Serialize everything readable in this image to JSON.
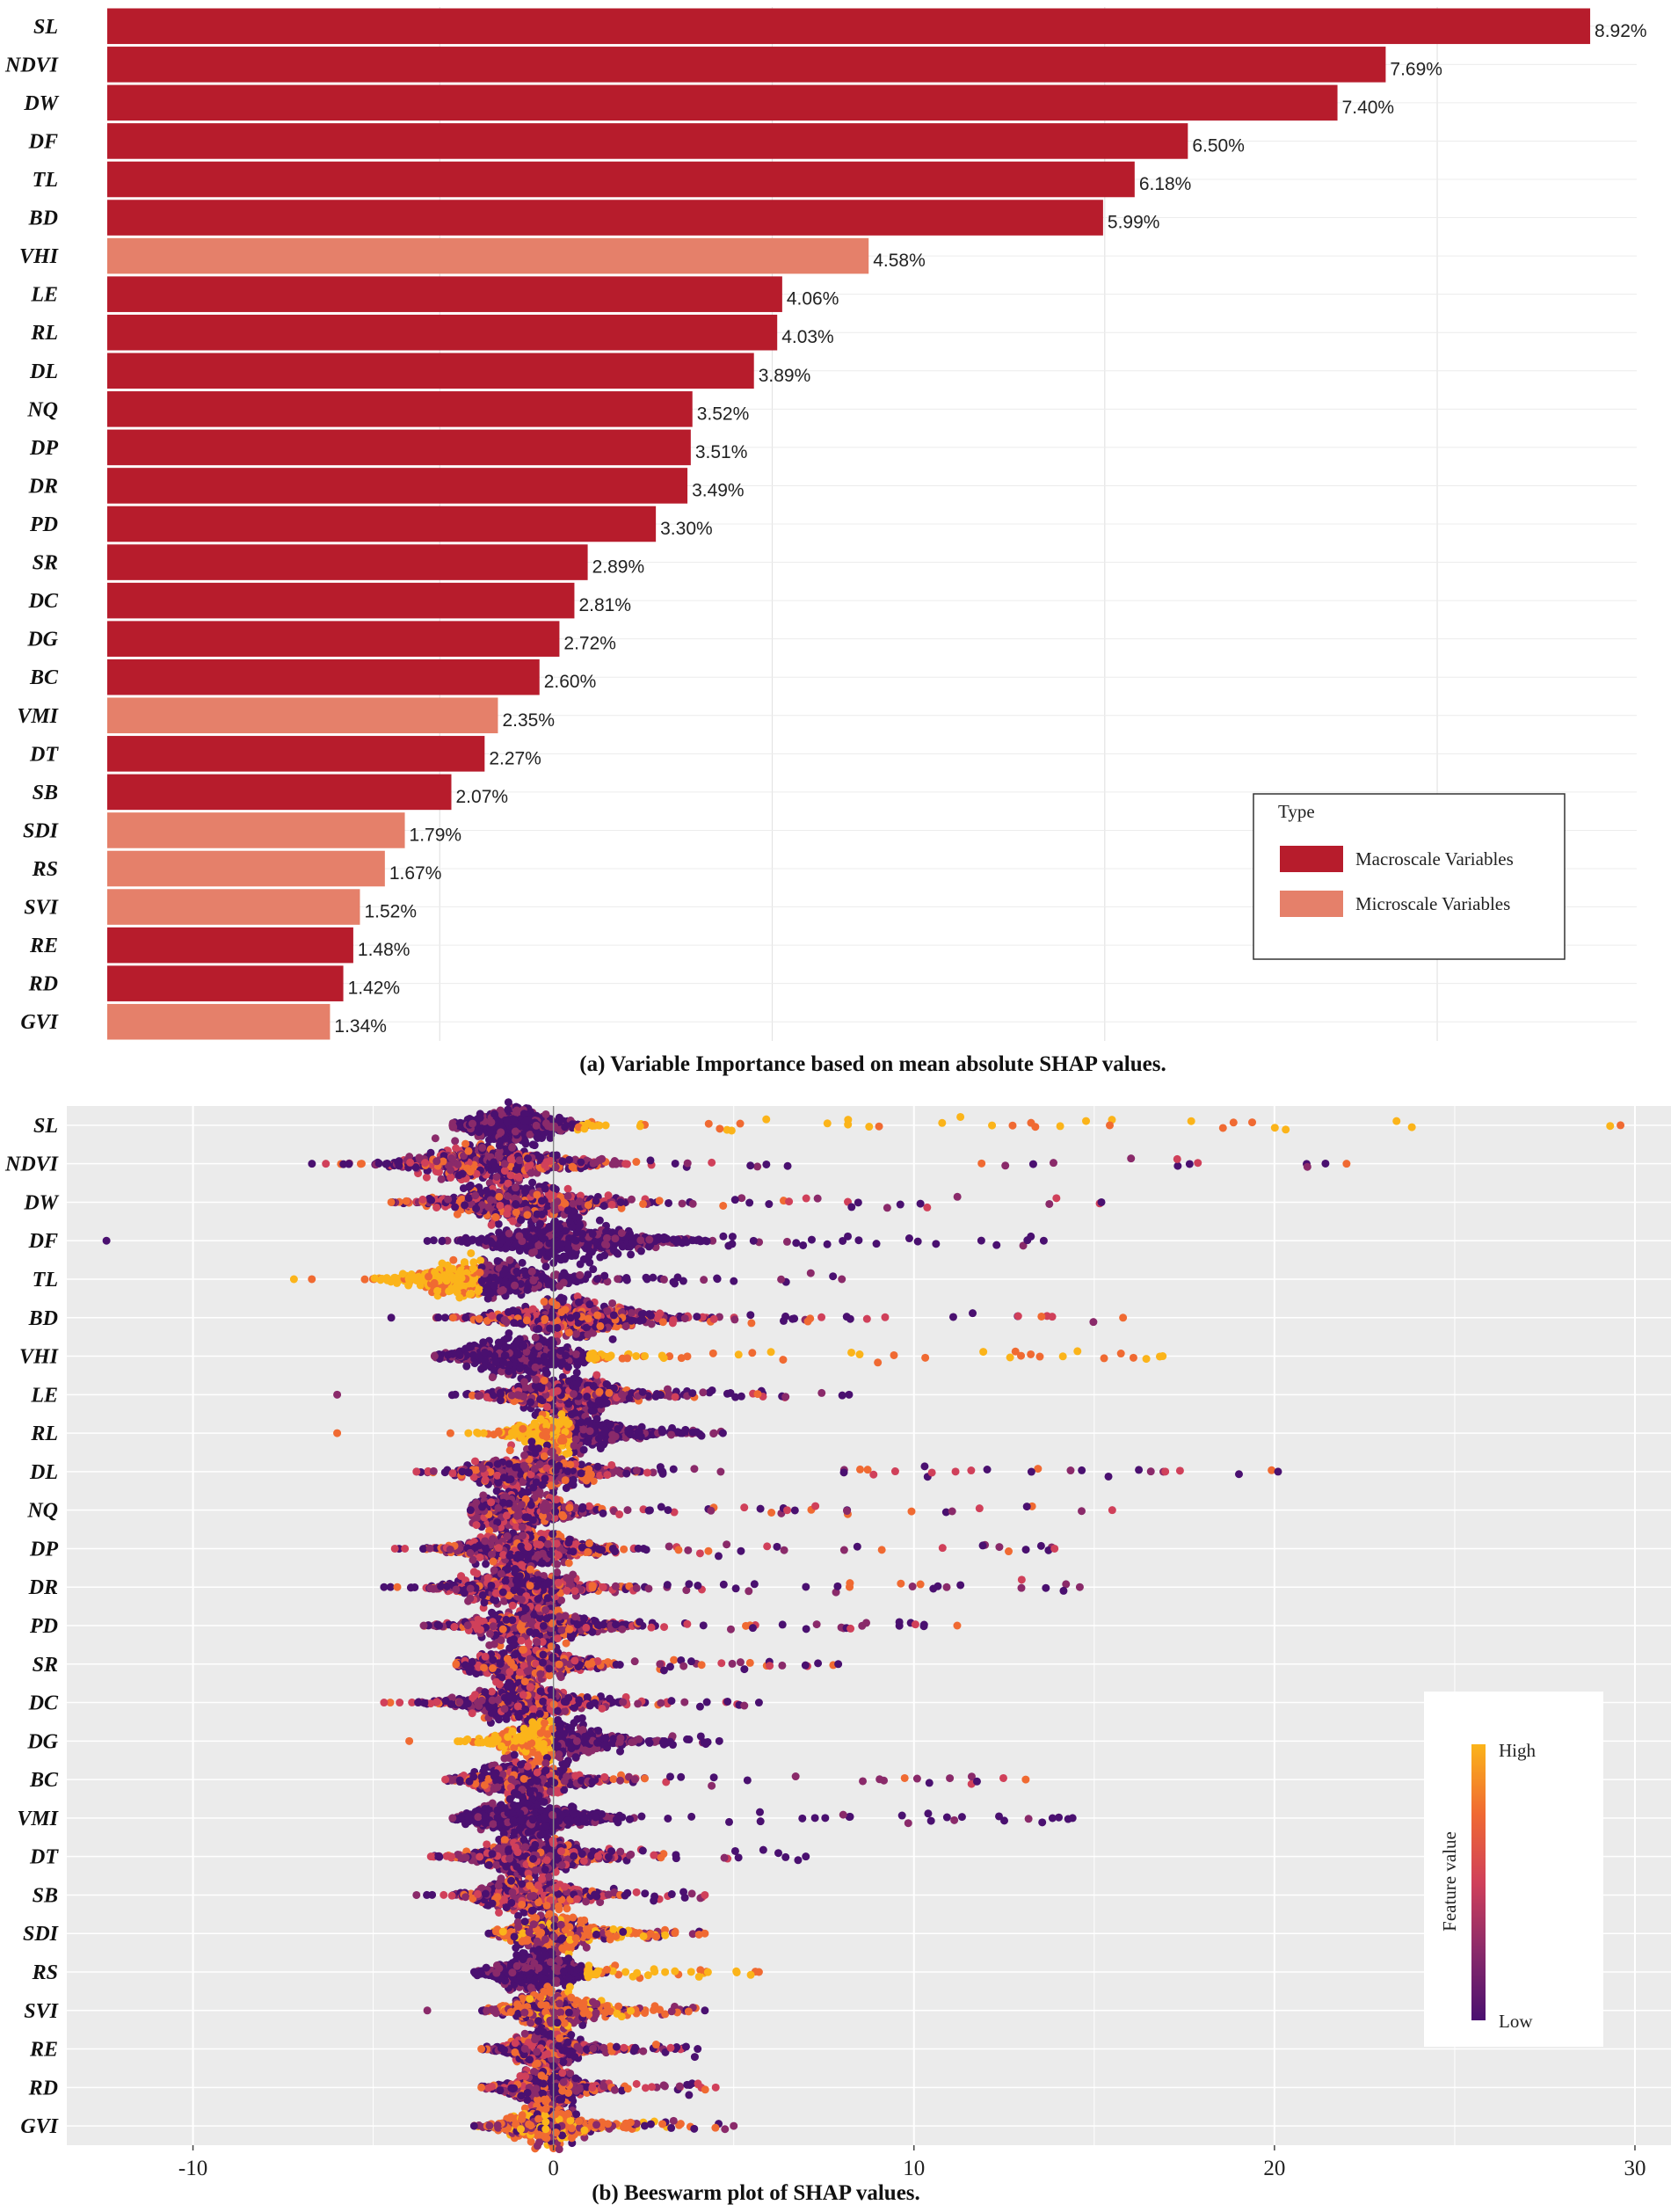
{
  "chart_data": [
    {
      "type": "bar",
      "orientation": "horizontal",
      "caption": "(a) Variable Importance based on mean absolute SHAP values.",
      "categories": [
        "SL",
        "NDVI",
        "DW",
        "DF",
        "TL",
        "BD",
        "VHI",
        "LE",
        "RL",
        "DL",
        "NQ",
        "DP",
        "DR",
        "PD",
        "SR",
        "DC",
        "DG",
        "BC",
        "VMI",
        "DT",
        "SB",
        "SDI",
        "RS",
        "SVI",
        "RE",
        "RD",
        "GVI"
      ],
      "values": [
        8.92,
        7.69,
        7.4,
        6.5,
        6.18,
        5.99,
        4.58,
        4.06,
        4.03,
        3.89,
        3.52,
        3.51,
        3.49,
        3.3,
        2.89,
        2.81,
        2.72,
        2.6,
        2.35,
        2.27,
        2.07,
        1.79,
        1.67,
        1.52,
        1.48,
        1.42,
        1.34
      ],
      "value_labels": [
        "8.92%",
        "7.69%",
        "7.40%",
        "6.50%",
        "6.18%",
        "5.99%",
        "4.58%",
        "4.06%",
        "4.03%",
        "3.89%",
        "3.52%",
        "3.51%",
        "3.49%",
        "3.30%",
        "2.89%",
        "2.81%",
        "2.72%",
        "2.60%",
        "2.35%",
        "2.27%",
        "2.07%",
        "1.79%",
        "1.67%",
        "1.52%",
        "1.48%",
        "1.42%",
        "1.34%"
      ],
      "types": [
        "Macro",
        "Macro",
        "Macro",
        "Macro",
        "Macro",
        "Macro",
        "Micro",
        "Macro",
        "Macro",
        "Macro",
        "Macro",
        "Macro",
        "Macro",
        "Macro",
        "Macro",
        "Macro",
        "Macro",
        "Macro",
        "Micro",
        "Macro",
        "Macro",
        "Micro",
        "Micro",
        "Micro",
        "Macro",
        "Macro",
        "Micro"
      ],
      "xlim": [
        0,
        9.2
      ],
      "grid": true,
      "legend": {
        "title": "Type",
        "position": "bottom-right",
        "entries": [
          {
            "key": "Macro",
            "label": "Macroscale Variables",
            "color": "#b71c2c"
          },
          {
            "key": "Micro",
            "label": "Microscale Variables",
            "color": "#e5806a"
          }
        ]
      }
    },
    {
      "type": "scatter",
      "subtype": "beeswarm",
      "caption": "(b) Beeswarm plot of SHAP values.",
      "categories": [
        "SL",
        "NDVI",
        "DW",
        "DF",
        "TL",
        "BD",
        "VHI",
        "LE",
        "RL",
        "DL",
        "NQ",
        "DP",
        "DR",
        "PD",
        "SR",
        "DC",
        "DG",
        "BC",
        "VMI",
        "DT",
        "SB",
        "SDI",
        "RS",
        "SVI",
        "RE",
        "RD",
        "GVI"
      ],
      "xlim": [
        -13.5,
        31
      ],
      "xticks": [
        -10,
        0,
        10,
        20,
        30
      ],
      "xtick_labels": [
        "-10",
        "0",
        "10",
        "20",
        "30"
      ],
      "colorbar": {
        "title": "Feature value",
        "high_label": "High",
        "low_label": "Low",
        "colors": [
          "#4a1070",
          "#8a2a6a",
          "#d0405a",
          "#f06a32",
          "#fbb41a"
        ]
      },
      "series": [
        {
          "feature": "SL",
          "center": -1.0,
          "spread": 2.0,
          "tail_left": -2.8,
          "tail_right": 29.6,
          "color_trend": "high_right"
        },
        {
          "feature": "NDVI",
          "center": -1.8,
          "spread": 3.2,
          "tail_left": -6.7,
          "tail_right": 22.0,
          "color_trend": "mixed"
        },
        {
          "feature": "DW",
          "center": -1.0,
          "spread": 3.0,
          "tail_left": -4.5,
          "tail_right": 15.2,
          "color_trend": "mixed"
        },
        {
          "feature": "DF",
          "center": 0.5,
          "spread": 3.2,
          "tail_left": -12.4,
          "tail_right": 13.6,
          "color_trend": "low"
        },
        {
          "feature": "TL",
          "center": -2.0,
          "spread": 2.8,
          "tail_left": -7.2,
          "tail_right": 8.0,
          "color_trend": "high_left"
        },
        {
          "feature": "BD",
          "center": 0.5,
          "spread": 3.0,
          "tail_left": -4.5,
          "tail_right": 15.8,
          "color_trend": "mixed"
        },
        {
          "feature": "VHI",
          "center": -1.0,
          "spread": 2.5,
          "tail_left": -3.3,
          "tail_right": 16.9,
          "color_trend": "high_right"
        },
        {
          "feature": "LE",
          "center": 0.3,
          "spread": 2.5,
          "tail_left": -6.0,
          "tail_right": 8.2,
          "color_trend": "mixed"
        },
        {
          "feature": "RL",
          "center": 0.5,
          "spread": 2.3,
          "tail_left": -6.0,
          "tail_right": 4.7,
          "color_trend": "high_left"
        },
        {
          "feature": "DL",
          "center": -0.6,
          "spread": 2.6,
          "tail_left": -3.8,
          "tail_right": 20.1,
          "color_trend": "mixed"
        },
        {
          "feature": "NQ",
          "center": -1.0,
          "spread": 2.2,
          "tail_left": -2.3,
          "tail_right": 15.5,
          "color_trend": "mixed"
        },
        {
          "feature": "DP",
          "center": -0.8,
          "spread": 2.5,
          "tail_left": -4.4,
          "tail_right": 13.9,
          "color_trend": "mixed"
        },
        {
          "feature": "DR",
          "center": -1.0,
          "spread": 2.6,
          "tail_left": -4.7,
          "tail_right": 14.6,
          "color_trend": "mixed"
        },
        {
          "feature": "PD",
          "center": -0.5,
          "spread": 2.6,
          "tail_left": -3.6,
          "tail_right": 11.2,
          "color_trend": "mixed"
        },
        {
          "feature": "SR",
          "center": -0.8,
          "spread": 2.2,
          "tail_left": -2.7,
          "tail_right": 7.9,
          "color_trend": "mixed"
        },
        {
          "feature": "DC",
          "center": -1.0,
          "spread": 2.4,
          "tail_left": -4.7,
          "tail_right": 5.7,
          "color_trend": "mixed"
        },
        {
          "feature": "DG",
          "center": 0.0,
          "spread": 2.3,
          "tail_left": -4.0,
          "tail_right": 4.6,
          "color_trend": "high_left"
        },
        {
          "feature": "BC",
          "center": -0.8,
          "spread": 2.2,
          "tail_left": -3.0,
          "tail_right": 13.1,
          "color_trend": "mixed"
        },
        {
          "feature": "VMI",
          "center": -0.8,
          "spread": 2.4,
          "tail_left": -2.8,
          "tail_right": 14.4,
          "color_trend": "low"
        },
        {
          "feature": "DT",
          "center": -0.6,
          "spread": 2.3,
          "tail_left": -3.4,
          "tail_right": 7.0,
          "color_trend": "mixed"
        },
        {
          "feature": "SB",
          "center": -0.7,
          "spread": 2.0,
          "tail_left": -3.8,
          "tail_right": 4.2,
          "color_trend": "mixed"
        },
        {
          "feature": "SDI",
          "center": 0.0,
          "spread": 1.8,
          "tail_left": -1.8,
          "tail_right": 4.2,
          "color_trend": "high_center"
        },
        {
          "feature": "RS",
          "center": -0.5,
          "spread": 1.8,
          "tail_left": -2.2,
          "tail_right": 5.7,
          "color_trend": "high_right"
        },
        {
          "feature": "SVI",
          "center": 0.0,
          "spread": 1.8,
          "tail_left": -3.5,
          "tail_right": 4.2,
          "color_trend": "high_center"
        },
        {
          "feature": "RE",
          "center": -0.2,
          "spread": 1.6,
          "tail_left": -2.0,
          "tail_right": 4.0,
          "color_trend": "mixed"
        },
        {
          "feature": "RD",
          "center": -0.2,
          "spread": 1.6,
          "tail_left": -2.0,
          "tail_right": 4.5,
          "color_trend": "mixed"
        },
        {
          "feature": "GVI",
          "center": -0.2,
          "spread": 1.7,
          "tail_left": -2.2,
          "tail_right": 5.0,
          "color_trend": "high_center"
        }
      ]
    }
  ]
}
